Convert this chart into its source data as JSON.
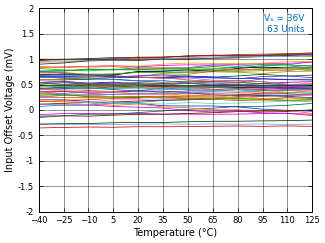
{
  "xlabel": "Temperature (°C)",
  "ylabel": "Input Offset Voltage (mV)",
  "annotation_color": "#0070C0",
  "xlim": [
    -40,
    125
  ],
  "ylim": [
    -2,
    2
  ],
  "xticks": [
    -40,
    -25,
    -10,
    5,
    20,
    35,
    50,
    65,
    80,
    95,
    110,
    125
  ],
  "yticks": [
    -2,
    -1.5,
    -1,
    -0.5,
    0,
    0.5,
    1,
    1.5,
    2
  ],
  "n_units": 63,
  "temp_points": [
    -40,
    -25,
    -10,
    5,
    20,
    35,
    50,
    65,
    80,
    95,
    110,
    125
  ],
  "background_color": "#ffffff",
  "line_width": 0.55,
  "seed": 12345,
  "xlabel_fontsize": 7,
  "ylabel_fontsize": 7,
  "tick_fontsize": 6,
  "annotation_fontsize": 6.5
}
